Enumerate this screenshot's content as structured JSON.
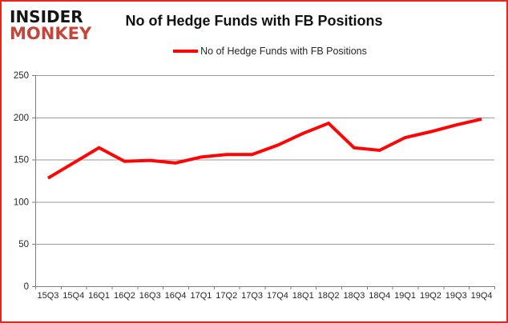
{
  "logo": {
    "line1": "INSIDER",
    "line2": "MONKEY"
  },
  "colors": {
    "frame_border": "#e8271a",
    "logo_black": "#151515",
    "logo_red": "#c2473a",
    "series_red": "#fe0505",
    "gridline": "#9a9a9a",
    "axis": "#7f7f7f",
    "tick_label": "#262626"
  },
  "chart_data": {
    "type": "line",
    "title": "No of Hedge Funds with FB Positions",
    "categories": [
      "15Q3",
      "15Q4",
      "16Q1",
      "16Q2",
      "16Q3",
      "16Q4",
      "17Q1",
      "17Q2",
      "17Q3",
      "17Q4",
      "18Q1",
      "18Q2",
      "18Q3",
      "18Q4",
      "19Q1",
      "19Q2",
      "19Q3",
      "19Q4"
    ],
    "series": [
      {
        "name": "No of Hedge Funds with FB Positions",
        "color": "#fe0505",
        "values": [
          128,
          146,
          164,
          148,
          149,
          146,
          153,
          156,
          156,
          167,
          181,
          193,
          164,
          161,
          176,
          183,
          191,
          198
        ]
      }
    ],
    "xlabel": "",
    "ylabel": "",
    "ylim": [
      0,
      250
    ],
    "yticks": [
      0,
      50,
      100,
      150,
      200,
      250
    ],
    "grid": "horizontal",
    "legend_position": "top",
    "markers": false
  }
}
